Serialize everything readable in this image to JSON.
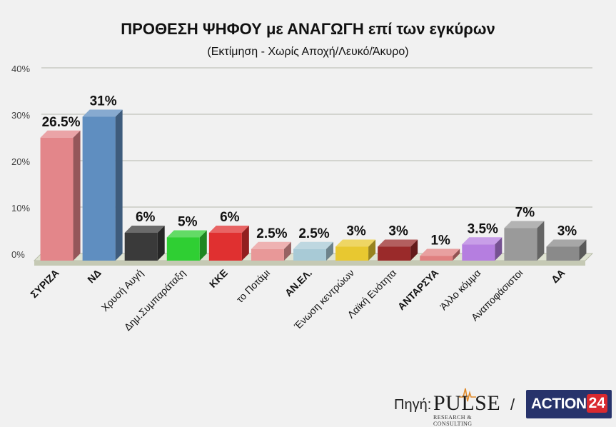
{
  "chart_data": {
    "type": "bar",
    "title": "ΠΡΟΘΕΣΗ ΨΗΦΟΥ με ΑΝΑΓΩΓΗ επί των εγκύρων",
    "subtitle": "(Εκτίμηση  -  Χωρίς Αποχή/Λευκό/Άκυρο)",
    "xlabel": "",
    "ylabel": "",
    "ylim": [
      0,
      40
    ],
    "yticks": [
      "0%",
      "10%",
      "20%",
      "30%",
      "40%"
    ],
    "ytick_values": [
      0,
      10,
      20,
      30,
      40
    ],
    "grid": true,
    "categories": [
      "ΣΥΡΙΖΑ",
      "ΝΔ",
      "Χρυσή Αυγή",
      "Δημ.Συμπαράταξη",
      "ΚΚΕ",
      "το Ποτάμι",
      "ΑΝ.ΕΛ.",
      "Ένωση κεντρώων",
      "Λαϊκή Ενότητα",
      "ΑΝΤΑΡΣΥΑ",
      "Άλλο κόμμα",
      "Αναποφάσιστοι",
      "ΔΑ"
    ],
    "values": [
      26.5,
      31,
      6,
      5,
      6,
      2.5,
      2.5,
      3,
      3,
      1,
      3.5,
      7,
      3
    ],
    "labels": [
      "26.5%",
      "31%",
      "6%",
      "5%",
      "6%",
      "2.5%",
      "2.5%",
      "3%",
      "3%",
      "1%",
      "3.5%",
      "7%",
      "3%"
    ],
    "colors": [
      "#e3868a",
      "#5f8ec0",
      "#3a3a3a",
      "#2fcf33",
      "#e03030",
      "#e89898",
      "#a8cad6",
      "#e8c830",
      "#9a2a2a",
      "#e08080",
      "#b57ee0",
      "#9a9a9a",
      "#8a8a8a"
    ],
    "bold_labels": [
      true,
      true,
      false,
      false,
      true,
      false,
      true,
      false,
      false,
      true,
      false,
      false,
      true
    ]
  },
  "source": {
    "label": "Πηγή:",
    "slash": "/",
    "pulse_word": "PULSE",
    "pulse_tag": "RESEARCH & CONSULTING",
    "action_word": "ACTION",
    "action_num": "24"
  }
}
